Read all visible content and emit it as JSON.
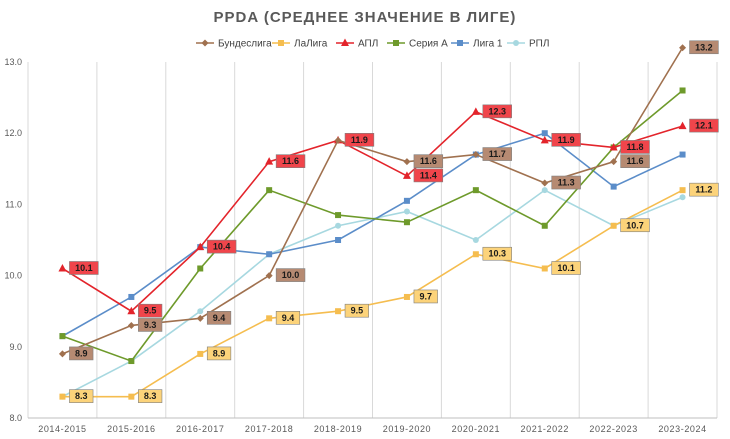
{
  "chart_data": {
    "type": "line",
    "title": "PPDA (СРЕДНЕЕ ЗНАЧЕНИЕ В ЛИГЕ)",
    "xlabel": "",
    "ylabel": "",
    "ylim": [
      8.0,
      13.0
    ],
    "yticks": [
      "8.0",
      "9.0",
      "10.0",
      "11.0",
      "12.0",
      "13.0"
    ],
    "grid": "vertical",
    "legend": "top",
    "categories": [
      "2014-2015",
      "2015-2016",
      "2016-2017",
      "2017-2018",
      "2018-2019",
      "2019-2020",
      "2020-2021",
      "2021-2022",
      "2022-2023",
      "2023-2024"
    ],
    "series": [
      {
        "name": "Бундеслига",
        "color": "#a0714f",
        "label_bg": "#b68a72",
        "marker": "diamond",
        "values": [
          8.9,
          9.3,
          9.4,
          10.0,
          11.9,
          11.6,
          11.7,
          11.3,
          11.6,
          13.2
        ],
        "labels": [
          "8.9",
          "9.3",
          "9.4",
          "10.0",
          null,
          "11.6",
          "11.7",
          "11.3",
          "11.6",
          "13.2"
        ]
      },
      {
        "name": "ЛаЛига",
        "color": "#f5bd4f",
        "label_bg": "#fcd37a",
        "marker": "square",
        "values": [
          8.3,
          8.3,
          8.9,
          9.4,
          9.5,
          9.7,
          10.3,
          10.1,
          10.7,
          11.2
        ],
        "labels": [
          "8.3",
          "8.3",
          "8.9",
          "9.4",
          "9.5",
          "9.7",
          "10.3",
          "10.1",
          "10.7",
          "11.2"
        ]
      },
      {
        "name": "АПЛ",
        "color": "#e3242b",
        "label_bg": "#f0454b",
        "marker": "triangle",
        "values": [
          10.1,
          9.5,
          10.4,
          11.6,
          11.9,
          11.4,
          12.3,
          11.9,
          11.8,
          12.1
        ],
        "labels": [
          "10.1",
          "9.5",
          "10.4",
          "11.6",
          "11.9",
          "11.4",
          "12.3",
          "11.9",
          "11.8",
          "12.1"
        ]
      },
      {
        "name": "Серия А",
        "color": "#6e9a2b",
        "label_bg": "#6e9a2b",
        "marker": "square",
        "values": [
          9.15,
          8.8,
          10.1,
          11.2,
          10.85,
          10.75,
          11.2,
          10.7,
          11.8,
          12.6
        ],
        "labels": [
          null,
          null,
          null,
          null,
          null,
          null,
          null,
          null,
          null,
          null
        ]
      },
      {
        "name": "Лига 1",
        "color": "#5b8dc9",
        "label_bg": "#5b8dc9",
        "marker": "square",
        "values": [
          9.15,
          9.7,
          10.4,
          10.3,
          10.5,
          11.05,
          11.7,
          12.0,
          11.25,
          11.7
        ],
        "labels": [
          null,
          null,
          null,
          null,
          null,
          null,
          null,
          null,
          null,
          null
        ]
      },
      {
        "name": "РПЛ",
        "color": "#a7d8e0",
        "label_bg": "#a7d8e0",
        "marker": "circle",
        "values": [
          8.3,
          8.8,
          9.5,
          10.3,
          10.7,
          10.9,
          10.5,
          11.2,
          10.7,
          11.1
        ],
        "labels": [
          null,
          null,
          null,
          null,
          null,
          null,
          null,
          null,
          null,
          null
        ]
      }
    ]
  }
}
